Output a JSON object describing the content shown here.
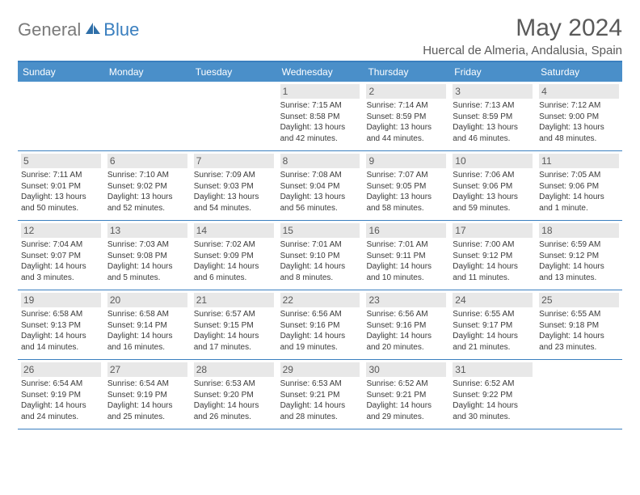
{
  "brand": {
    "general": "General",
    "blue": "Blue"
  },
  "title": "May 2024",
  "location": "Huercal de Almeria, Andalusia, Spain",
  "colors": {
    "header_bar": "#4a8fc9",
    "border": "#3a7fbf",
    "daynum_bg": "#e8e8e8",
    "text": "#3a3a3a",
    "title_text": "#5a5a5a",
    "logo_gray": "#7a7a7a",
    "logo_blue": "#3a7fbf",
    "background": "#ffffff"
  },
  "weekdays": [
    "Sunday",
    "Monday",
    "Tuesday",
    "Wednesday",
    "Thursday",
    "Friday",
    "Saturday"
  ],
  "weeks": [
    [
      {
        "n": "",
        "sr": "",
        "ss": "",
        "dl1": "",
        "dl2": ""
      },
      {
        "n": "",
        "sr": "",
        "ss": "",
        "dl1": "",
        "dl2": ""
      },
      {
        "n": "",
        "sr": "",
        "ss": "",
        "dl1": "",
        "dl2": ""
      },
      {
        "n": "1",
        "sr": "Sunrise: 7:15 AM",
        "ss": "Sunset: 8:58 PM",
        "dl1": "Daylight: 13 hours",
        "dl2": "and 42 minutes."
      },
      {
        "n": "2",
        "sr": "Sunrise: 7:14 AM",
        "ss": "Sunset: 8:59 PM",
        "dl1": "Daylight: 13 hours",
        "dl2": "and 44 minutes."
      },
      {
        "n": "3",
        "sr": "Sunrise: 7:13 AM",
        "ss": "Sunset: 8:59 PM",
        "dl1": "Daylight: 13 hours",
        "dl2": "and 46 minutes."
      },
      {
        "n": "4",
        "sr": "Sunrise: 7:12 AM",
        "ss": "Sunset: 9:00 PM",
        "dl1": "Daylight: 13 hours",
        "dl2": "and 48 minutes."
      }
    ],
    [
      {
        "n": "5",
        "sr": "Sunrise: 7:11 AM",
        "ss": "Sunset: 9:01 PM",
        "dl1": "Daylight: 13 hours",
        "dl2": "and 50 minutes."
      },
      {
        "n": "6",
        "sr": "Sunrise: 7:10 AM",
        "ss": "Sunset: 9:02 PM",
        "dl1": "Daylight: 13 hours",
        "dl2": "and 52 minutes."
      },
      {
        "n": "7",
        "sr": "Sunrise: 7:09 AM",
        "ss": "Sunset: 9:03 PM",
        "dl1": "Daylight: 13 hours",
        "dl2": "and 54 minutes."
      },
      {
        "n": "8",
        "sr": "Sunrise: 7:08 AM",
        "ss": "Sunset: 9:04 PM",
        "dl1": "Daylight: 13 hours",
        "dl2": "and 56 minutes."
      },
      {
        "n": "9",
        "sr": "Sunrise: 7:07 AM",
        "ss": "Sunset: 9:05 PM",
        "dl1": "Daylight: 13 hours",
        "dl2": "and 58 minutes."
      },
      {
        "n": "10",
        "sr": "Sunrise: 7:06 AM",
        "ss": "Sunset: 9:06 PM",
        "dl1": "Daylight: 13 hours",
        "dl2": "and 59 minutes."
      },
      {
        "n": "11",
        "sr": "Sunrise: 7:05 AM",
        "ss": "Sunset: 9:06 PM",
        "dl1": "Daylight: 14 hours",
        "dl2": "and 1 minute."
      }
    ],
    [
      {
        "n": "12",
        "sr": "Sunrise: 7:04 AM",
        "ss": "Sunset: 9:07 PM",
        "dl1": "Daylight: 14 hours",
        "dl2": "and 3 minutes."
      },
      {
        "n": "13",
        "sr": "Sunrise: 7:03 AM",
        "ss": "Sunset: 9:08 PM",
        "dl1": "Daylight: 14 hours",
        "dl2": "and 5 minutes."
      },
      {
        "n": "14",
        "sr": "Sunrise: 7:02 AM",
        "ss": "Sunset: 9:09 PM",
        "dl1": "Daylight: 14 hours",
        "dl2": "and 6 minutes."
      },
      {
        "n": "15",
        "sr": "Sunrise: 7:01 AM",
        "ss": "Sunset: 9:10 PM",
        "dl1": "Daylight: 14 hours",
        "dl2": "and 8 minutes."
      },
      {
        "n": "16",
        "sr": "Sunrise: 7:01 AM",
        "ss": "Sunset: 9:11 PM",
        "dl1": "Daylight: 14 hours",
        "dl2": "and 10 minutes."
      },
      {
        "n": "17",
        "sr": "Sunrise: 7:00 AM",
        "ss": "Sunset: 9:12 PM",
        "dl1": "Daylight: 14 hours",
        "dl2": "and 11 minutes."
      },
      {
        "n": "18",
        "sr": "Sunrise: 6:59 AM",
        "ss": "Sunset: 9:12 PM",
        "dl1": "Daylight: 14 hours",
        "dl2": "and 13 minutes."
      }
    ],
    [
      {
        "n": "19",
        "sr": "Sunrise: 6:58 AM",
        "ss": "Sunset: 9:13 PM",
        "dl1": "Daylight: 14 hours",
        "dl2": "and 14 minutes."
      },
      {
        "n": "20",
        "sr": "Sunrise: 6:58 AM",
        "ss": "Sunset: 9:14 PM",
        "dl1": "Daylight: 14 hours",
        "dl2": "and 16 minutes."
      },
      {
        "n": "21",
        "sr": "Sunrise: 6:57 AM",
        "ss": "Sunset: 9:15 PM",
        "dl1": "Daylight: 14 hours",
        "dl2": "and 17 minutes."
      },
      {
        "n": "22",
        "sr": "Sunrise: 6:56 AM",
        "ss": "Sunset: 9:16 PM",
        "dl1": "Daylight: 14 hours",
        "dl2": "and 19 minutes."
      },
      {
        "n": "23",
        "sr": "Sunrise: 6:56 AM",
        "ss": "Sunset: 9:16 PM",
        "dl1": "Daylight: 14 hours",
        "dl2": "and 20 minutes."
      },
      {
        "n": "24",
        "sr": "Sunrise: 6:55 AM",
        "ss": "Sunset: 9:17 PM",
        "dl1": "Daylight: 14 hours",
        "dl2": "and 21 minutes."
      },
      {
        "n": "25",
        "sr": "Sunrise: 6:55 AM",
        "ss": "Sunset: 9:18 PM",
        "dl1": "Daylight: 14 hours",
        "dl2": "and 23 minutes."
      }
    ],
    [
      {
        "n": "26",
        "sr": "Sunrise: 6:54 AM",
        "ss": "Sunset: 9:19 PM",
        "dl1": "Daylight: 14 hours",
        "dl2": "and 24 minutes."
      },
      {
        "n": "27",
        "sr": "Sunrise: 6:54 AM",
        "ss": "Sunset: 9:19 PM",
        "dl1": "Daylight: 14 hours",
        "dl2": "and 25 minutes."
      },
      {
        "n": "28",
        "sr": "Sunrise: 6:53 AM",
        "ss": "Sunset: 9:20 PM",
        "dl1": "Daylight: 14 hours",
        "dl2": "and 26 minutes."
      },
      {
        "n": "29",
        "sr": "Sunrise: 6:53 AM",
        "ss": "Sunset: 9:21 PM",
        "dl1": "Daylight: 14 hours",
        "dl2": "and 28 minutes."
      },
      {
        "n": "30",
        "sr": "Sunrise: 6:52 AM",
        "ss": "Sunset: 9:21 PM",
        "dl1": "Daylight: 14 hours",
        "dl2": "and 29 minutes."
      },
      {
        "n": "31",
        "sr": "Sunrise: 6:52 AM",
        "ss": "Sunset: 9:22 PM",
        "dl1": "Daylight: 14 hours",
        "dl2": "and 30 minutes."
      },
      {
        "n": "",
        "sr": "",
        "ss": "",
        "dl1": "",
        "dl2": ""
      }
    ]
  ]
}
